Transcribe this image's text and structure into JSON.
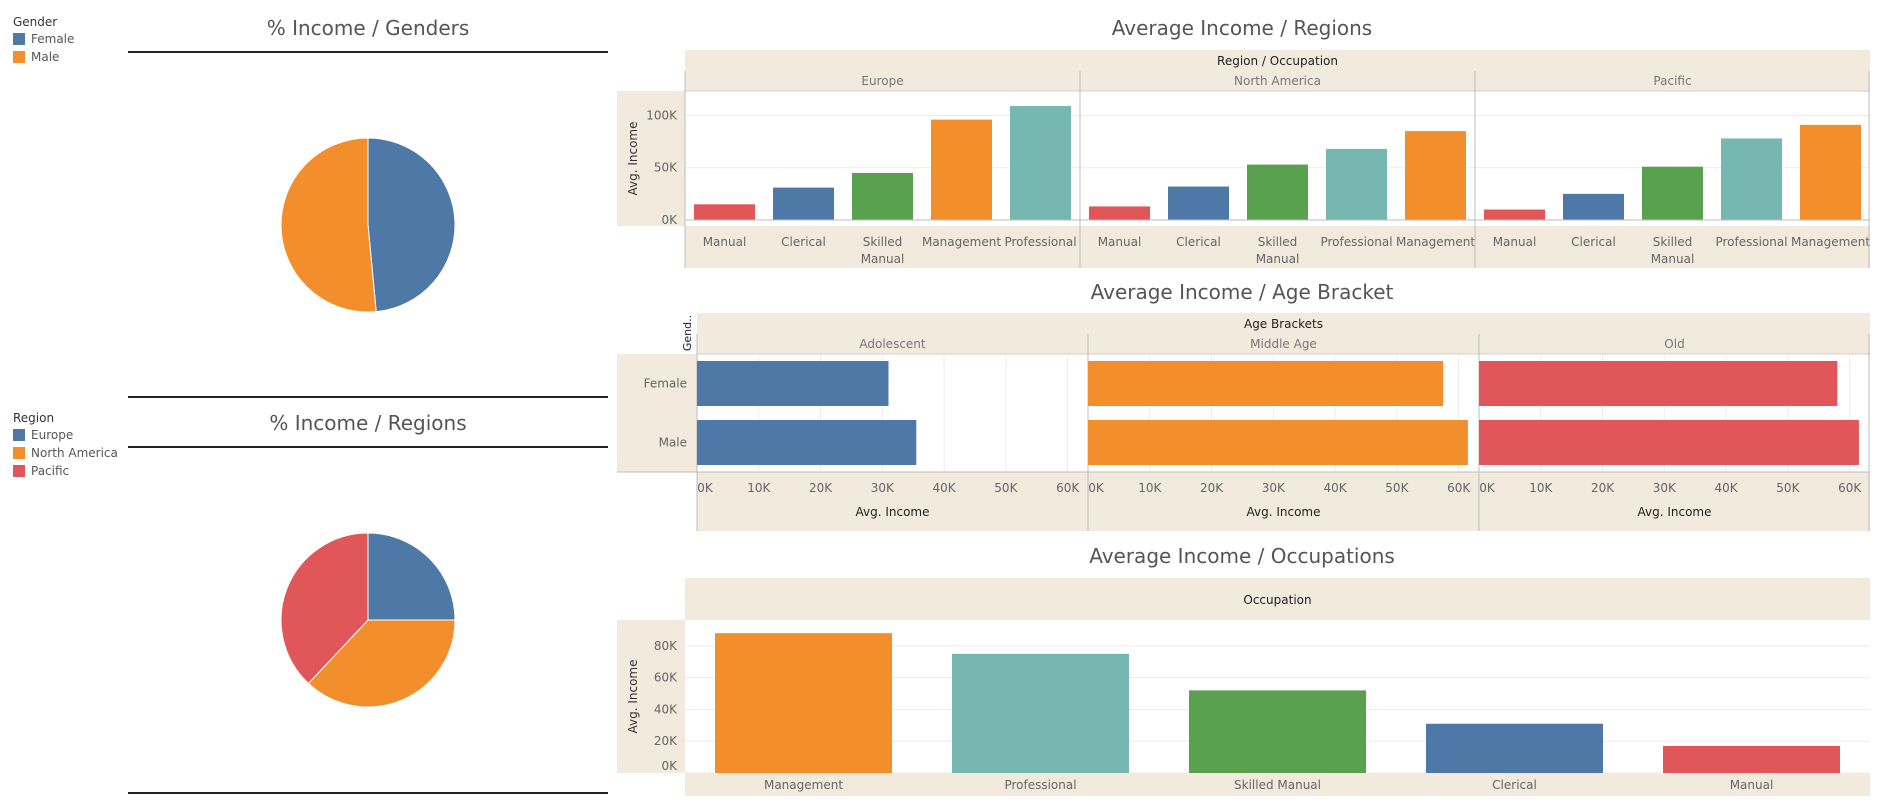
{
  "legend_gender": {
    "title": "Gender",
    "items": [
      {
        "label": "Female",
        "color": "#4e79a7"
      },
      {
        "label": "Male",
        "color": "#f28e2b"
      }
    ]
  },
  "legend_region": {
    "title": "Region",
    "items": [
      {
        "label": "Europe",
        "color": "#4e79a7"
      },
      {
        "label": "North America",
        "color": "#f28e2b"
      },
      {
        "label": "Pacific",
        "color": "#e15759"
      }
    ]
  },
  "titles": {
    "pie_genders": "% Income / Genders",
    "pie_regions": "% Income / Regions",
    "regions": "Average Income / Regions",
    "age": "Average Income / Age Bracket",
    "occupations": "Average Income / Occupations"
  },
  "occupation_colors": {
    "Manual": "#e15759",
    "Clerical": "#4e79a7",
    "Skilled Manual": "#59a14f",
    "Management": "#f28e2b",
    "Professional": "#76b7b2"
  },
  "chart_data": [
    {
      "id": "pie_genders",
      "type": "pie",
      "title": "% Income / Genders",
      "slices": [
        {
          "label": "Female",
          "value": 48.5,
          "color": "#4e79a7"
        },
        {
          "label": "Male",
          "value": 51.5,
          "color": "#f28e2b"
        }
      ]
    },
    {
      "id": "pie_regions",
      "type": "pie",
      "title": "% Income / Regions",
      "slices": [
        {
          "label": "Europe",
          "value": 25,
          "color": "#4e79a7"
        },
        {
          "label": "North America",
          "value": 37,
          "color": "#f28e2b"
        },
        {
          "label": "Pacific",
          "value": 38,
          "color": "#e15759"
        }
      ]
    },
    {
      "id": "regions",
      "type": "bar",
      "title": "Average Income / Regions",
      "header": "Region / Occupation",
      "ylabel": "Avg. Income",
      "ylim": [
        0,
        110000
      ],
      "yticks": [
        {
          "v": 0,
          "label": "0K"
        },
        {
          "v": 50000,
          "label": "50K"
        },
        {
          "v": 100000,
          "label": "100K"
        }
      ],
      "panels": [
        {
          "name": "Europe",
          "categories": [
            "Manual",
            "Clerical",
            "Skilled Manual",
            "Management",
            "Professional"
          ],
          "values": [
            15000,
            31000,
            45000,
            96000,
            109000
          ]
        },
        {
          "name": "North America",
          "categories": [
            "Manual",
            "Clerical",
            "Skilled Manual",
            "Professional",
            "Management"
          ],
          "values": [
            13000,
            32000,
            53000,
            68000,
            85000
          ]
        },
        {
          "name": "Pacific",
          "categories": [
            "Manual",
            "Clerical",
            "Skilled Manual",
            "Professional",
            "Management"
          ],
          "values": [
            10000,
            25000,
            51000,
            78000,
            91000
          ]
        }
      ]
    },
    {
      "id": "age",
      "type": "bar",
      "orientation": "horizontal",
      "title": "Average Income / Age Bracket",
      "header": "Age Brackets",
      "row_header": "Gend..",
      "xlabel": "Avg. Income",
      "xlim": [
        0,
        62000
      ],
      "xticks": [
        {
          "v": 0,
          "label": "0K"
        },
        {
          "v": 10000,
          "label": "10K"
        },
        {
          "v": 20000,
          "label": "20K"
        },
        {
          "v": 30000,
          "label": "30K"
        },
        {
          "v": 40000,
          "label": "40K"
        },
        {
          "v": 50000,
          "label": "50K"
        },
        {
          "v": 60000,
          "label": "60K"
        }
      ],
      "rows": [
        "Female",
        "Male"
      ],
      "panels": [
        {
          "name": "Adolescent",
          "color": "#4e79a7",
          "values": [
            31000,
            35500
          ]
        },
        {
          "name": "Middle Age",
          "color": "#f28e2b",
          "values": [
            57500,
            61500
          ]
        },
        {
          "name": "Old",
          "color": "#e15759",
          "values": [
            58000,
            61500
          ]
        }
      ]
    },
    {
      "id": "occupations",
      "type": "bar",
      "title": "Average Income / Occupations",
      "header": "Occupation",
      "ylabel": "Avg. Income",
      "ylim": [
        0,
        90000
      ],
      "yticks": [
        {
          "v": 0,
          "label": "0K"
        },
        {
          "v": 20000,
          "label": "20K"
        },
        {
          "v": 40000,
          "label": "40K"
        },
        {
          "v": 60000,
          "label": "60K"
        },
        {
          "v": 80000,
          "label": "80K"
        }
      ],
      "categories": [
        "Management",
        "Professional",
        "Skilled Manual",
        "Clerical",
        "Manual"
      ],
      "values": [
        88000,
        75000,
        52000,
        31000,
        17000
      ]
    }
  ]
}
